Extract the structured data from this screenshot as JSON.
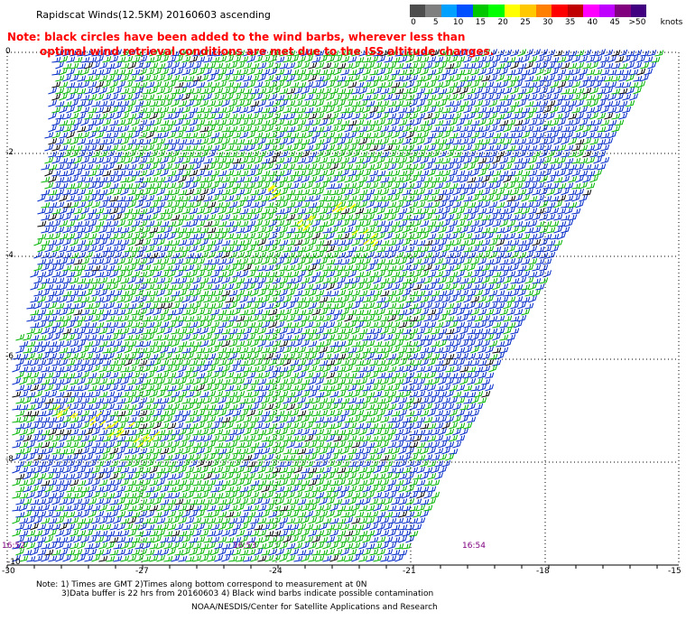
{
  "header": {
    "title": "Rapidscat Winds(12.5KM) 20160603 ascending",
    "note_line1": "Note: black circles have been added to the wind barbs, wherever less than",
    "note_line2": "optimal wind retrieval conditions are met due to the ISS altitude changes."
  },
  "color_scale": {
    "unit_label": "knots",
    "labels": [
      "0",
      "5",
      "10",
      "15",
      "20",
      "25",
      "30",
      "35",
      "40",
      "45",
      ">50"
    ],
    "colors": [
      "#4d4d4d",
      "#7f7f7f",
      "#00a0ff",
      "#0050ff",
      "#00c800",
      "#00ff00",
      "#ffff00",
      "#ffc800",
      "#ff8000",
      "#ff0000",
      "#c00000",
      "#ff00ff",
      "#c000ff",
      "#800080",
      "#400080"
    ]
  },
  "map": {
    "lat_labels": [
      "0",
      "-2",
      "-4",
      "-6",
      "-8",
      "-10"
    ],
    "lon_labels": [
      "-30",
      "-27",
      "-24",
      "-21",
      "-18",
      "-15"
    ],
    "time_labels": [
      "16:52",
      "16:53",
      "16:54"
    ],
    "colors": {
      "blue": "#0028c8",
      "green": "#00b400",
      "black": "#000000",
      "yellow": "#ffff00",
      "grid": "#000000"
    }
  },
  "footer": {
    "line1": "Note: 1) Times are GMT 2)Times along bottom correspond to measurement at 0N",
    "line2": "3)Data buffer is 22 hrs from 20160603 4) Black wind barbs indicate possible contamination",
    "line3": "NOAA/NESDIS/Center for Satellite Applications and Research"
  }
}
